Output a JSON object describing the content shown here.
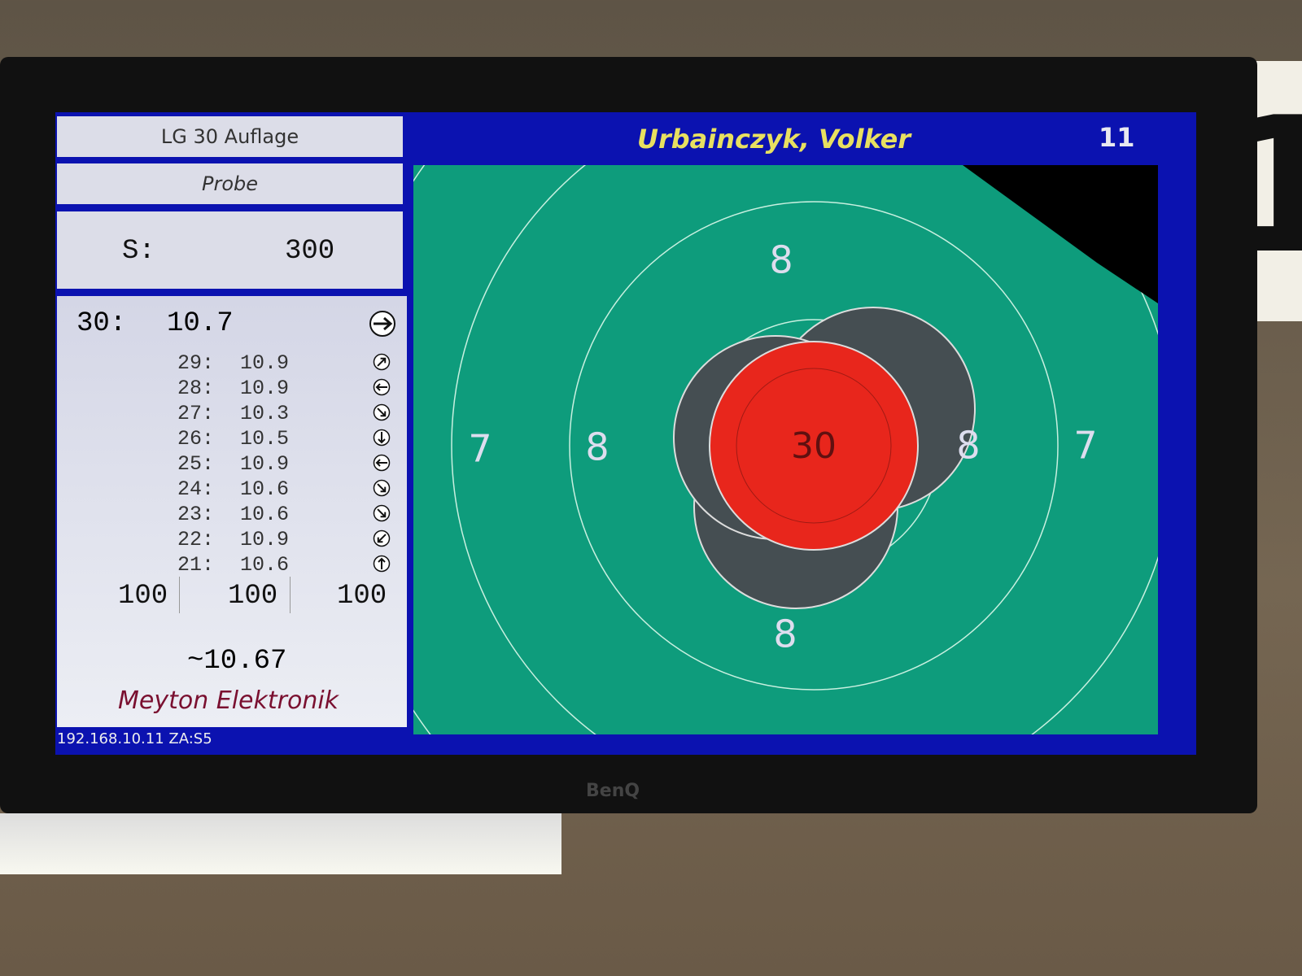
{
  "header": {
    "discipline": "LG 30 Auflage",
    "mode": "Probe",
    "total_label": "S:",
    "total": "300"
  },
  "last_shot": {
    "number": "30:",
    "value": "10.7"
  },
  "shots": [
    {
      "number": "29:",
      "value": "10.9"
    },
    {
      "number": "28:",
      "value": "10.9"
    },
    {
      "number": "27:",
      "value": "10.3"
    },
    {
      "number": "26:",
      "value": "10.5"
    },
    {
      "number": "25:",
      "value": "10.9"
    },
    {
      "number": "24:",
      "value": "10.6"
    },
    {
      "number": "23:",
      "value": "10.6"
    },
    {
      "number": "22:",
      "value": "10.9"
    },
    {
      "number": "21:",
      "value": "10.6"
    }
  ],
  "series": [
    "100",
    "100",
    "100"
  ],
  "average": "~10.67",
  "brand": "Meyton Elektronik",
  "footer": "192.168.10.11 ZA:S5",
  "shooter": {
    "name": "Urbainczyk, Volker",
    "lane": "11"
  },
  "target": {
    "ring_labels": [
      "8",
      "8",
      "8",
      "8",
      "7",
      "7"
    ],
    "center_label": "30"
  },
  "monitor": {
    "brand": "BenQ"
  },
  "wall_sign": "1"
}
